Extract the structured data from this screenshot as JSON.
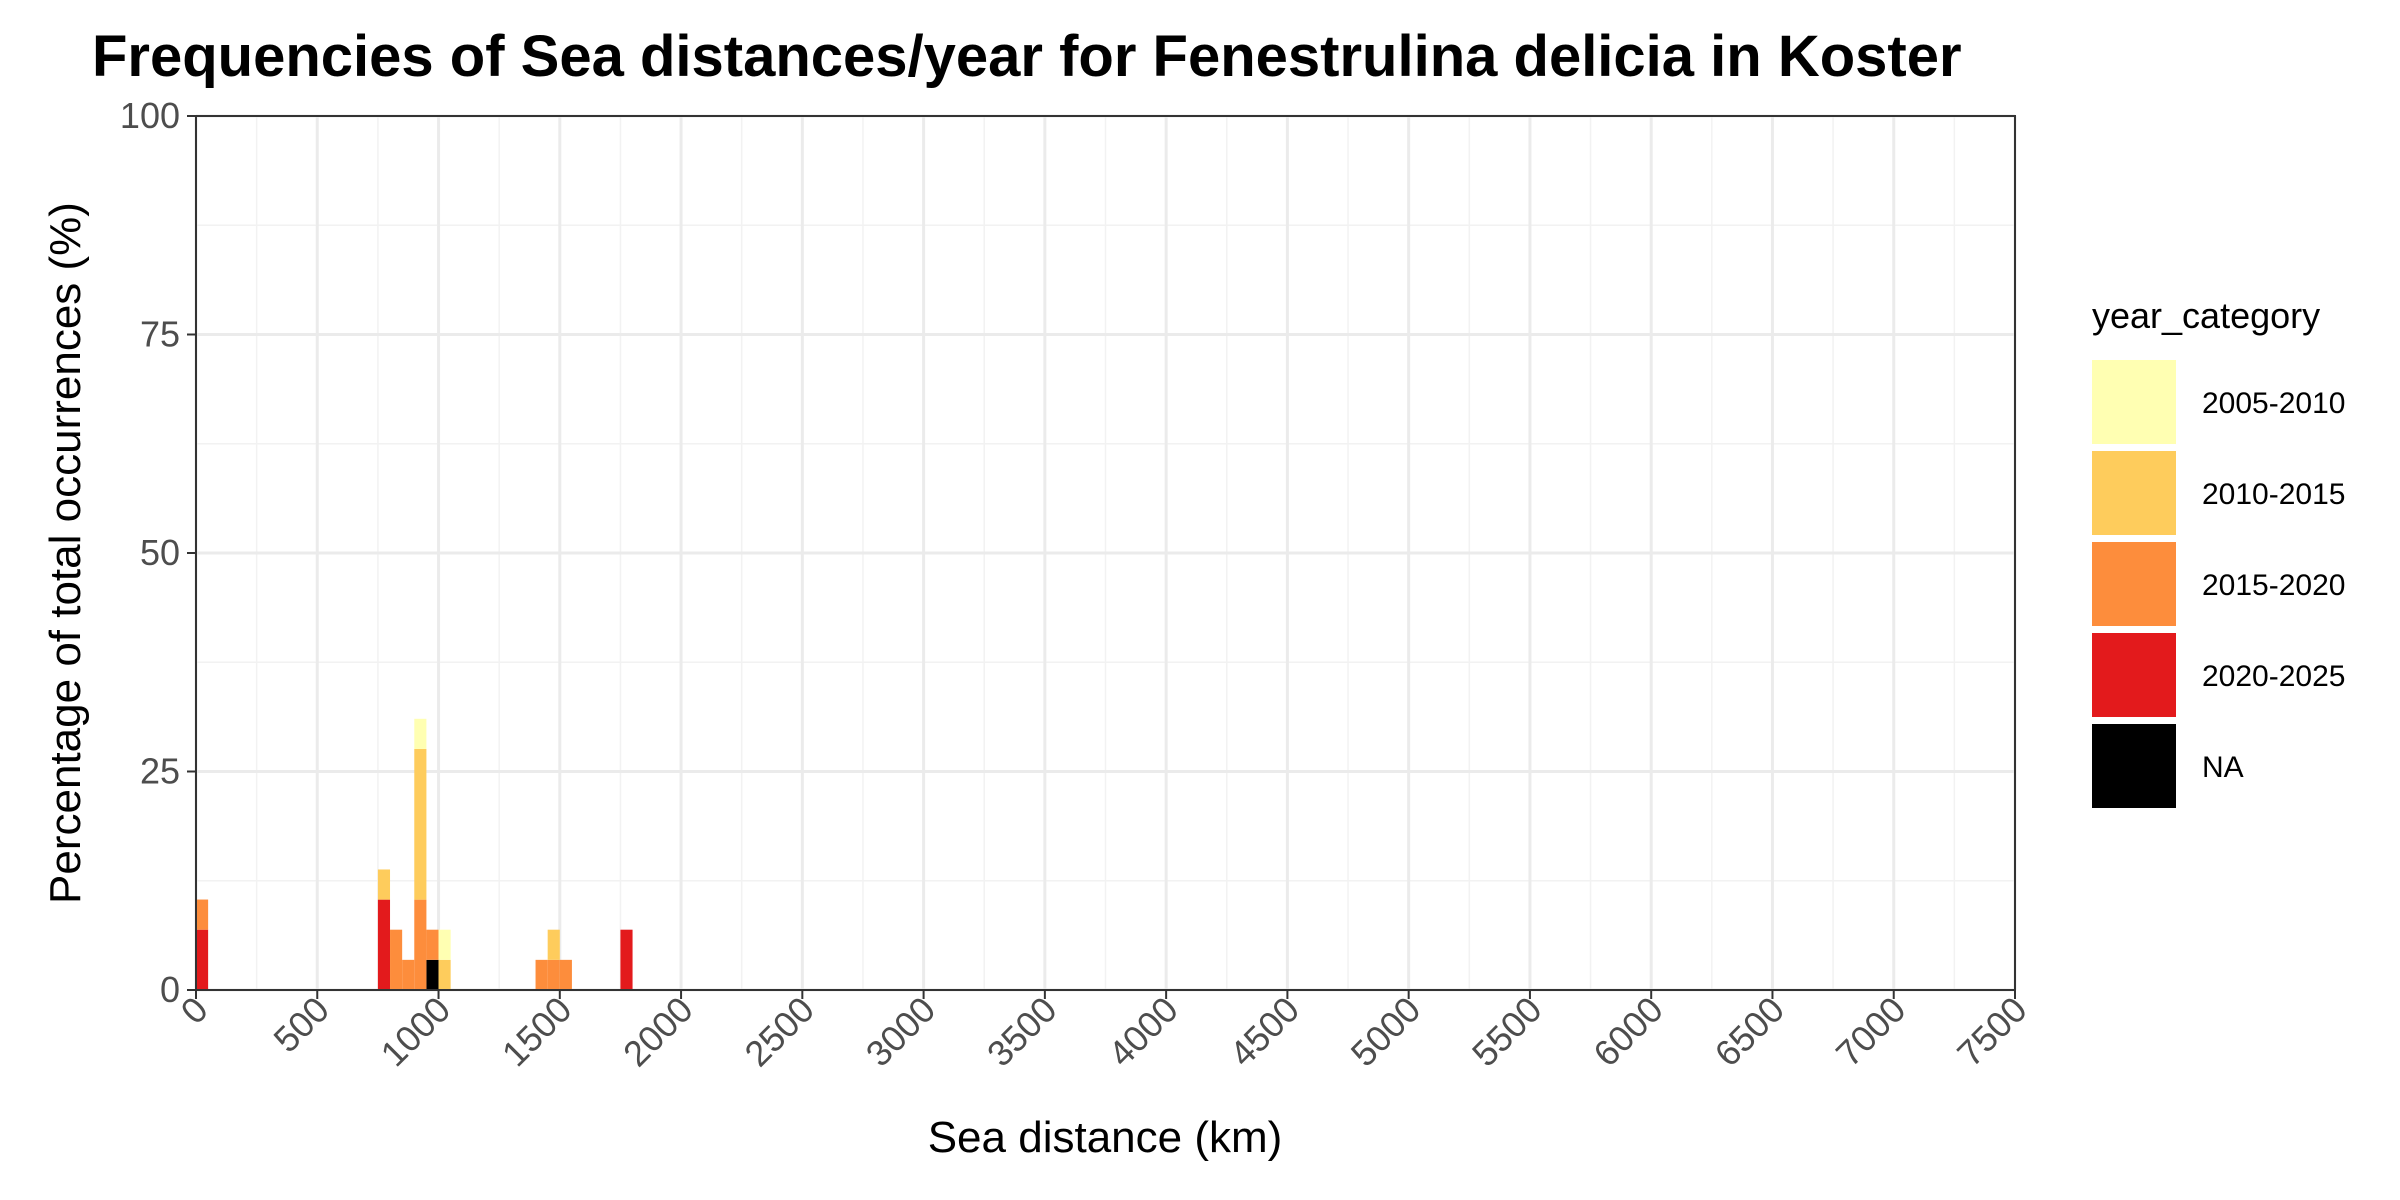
{
  "chart_data": {
    "type": "bar",
    "stacked": true,
    "title": "Frequencies of Sea distances/year for Fenestrulina delicia in Koster",
    "xlabel": "Sea distance (km)",
    "ylabel": "Percentage of total occurrences (%)",
    "xlim": [
      0,
      7500
    ],
    "ylim": [
      0,
      100
    ],
    "bin_width": 50,
    "x_ticks": [
      "0",
      "500",
      "1000",
      "1500",
      "2000",
      "2500",
      "3000",
      "3500",
      "4000",
      "4500",
      "5000",
      "5500",
      "6000",
      "6500",
      "7000",
      "7500"
    ],
    "y_ticks": [
      "0",
      "25",
      "50",
      "75",
      "100"
    ],
    "grid": true,
    "legend_title": "year_category",
    "legend_position": "right",
    "series": [
      {
        "name": "2005-2010",
        "color": "#FFFFB2",
        "points": [
          {
            "x": 925,
            "y": 3.45
          },
          {
            "x": 1025,
            "y": 3.45
          }
        ]
      },
      {
        "name": "2010-2015",
        "color": "#FECC5C",
        "points": [
          {
            "x": 775,
            "y": 3.45
          },
          {
            "x": 925,
            "y": 17.24
          },
          {
            "x": 1025,
            "y": 3.45
          },
          {
            "x": 1475,
            "y": 3.45
          }
        ]
      },
      {
        "name": "2015-2020",
        "color": "#FD8D3C",
        "points": [
          {
            "x": 25,
            "y": 3.45
          },
          {
            "x": 825,
            "y": 6.9
          },
          {
            "x": 875,
            "y": 3.45
          },
          {
            "x": 925,
            "y": 10.34
          },
          {
            "x": 975,
            "y": 3.45
          },
          {
            "x": 1425,
            "y": 3.45
          },
          {
            "x": 1475,
            "y": 3.45
          },
          {
            "x": 1525,
            "y": 3.45
          }
        ]
      },
      {
        "name": "2020-2025",
        "color": "#E31A1C",
        "points": [
          {
            "x": 25,
            "y": 6.9
          },
          {
            "x": 775,
            "y": 10.34
          },
          {
            "x": 1775,
            "y": 6.9
          }
        ]
      },
      {
        "name": "NA",
        "color": "#000000",
        "points": [
          {
            "x": 975,
            "y": 3.45
          }
        ]
      }
    ],
    "stack_order_bottom_to_top": [
      "NA",
      "2020-2025",
      "2015-2020",
      "2010-2015",
      "2005-2010"
    ]
  }
}
